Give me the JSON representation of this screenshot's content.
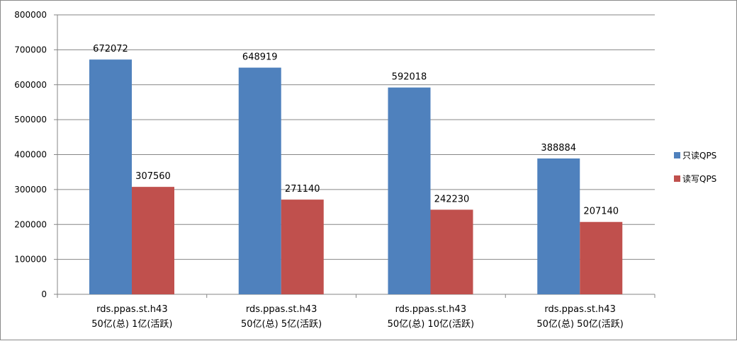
{
  "chart_data": {
    "type": "bar",
    "title": "",
    "xlabel": "",
    "ylabel": "",
    "ylim": [
      0,
      800000
    ],
    "yticks": [
      0,
      100000,
      200000,
      300000,
      400000,
      500000,
      600000,
      700000,
      800000
    ],
    "grid": true,
    "legend_position": "right",
    "categories": [
      [
        "rds.ppas.st.h43",
        "50亿(总) 1亿(活跃)"
      ],
      [
        "rds.ppas.st.h43",
        "50亿(总) 5亿(活跃)"
      ],
      [
        "rds.ppas.st.h43",
        "50亿(总) 10亿(活跃)"
      ],
      [
        "rds.ppas.st.h43",
        "50亿(总) 50亿(活跃)"
      ]
    ],
    "series": [
      {
        "name": "只读QPS",
        "color": "#4f81bd",
        "values": [
          672072,
          648919,
          592018,
          388884
        ]
      },
      {
        "name": "读写QPS",
        "color": "#c0504d",
        "values": [
          307560,
          271140,
          242230,
          207140
        ]
      }
    ]
  }
}
